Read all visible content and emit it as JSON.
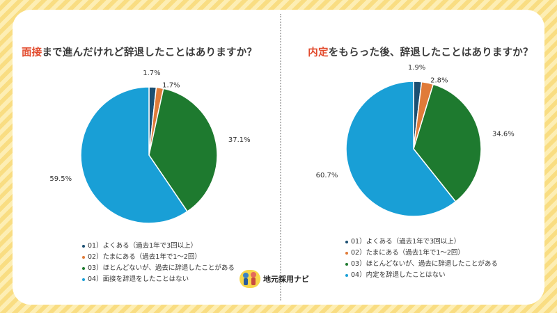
{
  "chart_data": [
    {
      "type": "pie",
      "title_accent": "面接",
      "title_rest": "まで進んだけれど辞退したことはありますか？",
      "categories": [
        "01）よくある（過去1年で3回以上）",
        "02）たまにある（過去1年で1〜2回）",
        "03）ほとんどないが、過去に辞退したことがある",
        "04）面接を辞退をしたことはない"
      ],
      "values": [
        1.7,
        1.7,
        37.1,
        59.5
      ],
      "labels": [
        "1.7%",
        "1.7%",
        "37.1%",
        "59.5%"
      ],
      "colors": [
        "#1b4f72",
        "#e07b39",
        "#1e7a2f",
        "#199fd6"
      ],
      "legend_position": "bottom"
    },
    {
      "type": "pie",
      "title_accent": "内定",
      "title_rest": "をもらった後、辞退したことはありますか？",
      "categories": [
        "01）よくある（過去1年で3回以上）",
        "02）たまにある（過去1年で1〜2回）",
        "03）ほとんどないが、過去に辞退したことがある",
        "04）内定を辞退したことはない"
      ],
      "values": [
        1.9,
        2.8,
        34.6,
        60.7
      ],
      "labels": [
        "1.9%",
        "2.8%",
        "34.6%",
        "60.7%"
      ],
      "colors": [
        "#1b4f72",
        "#e07b39",
        "#1e7a2f",
        "#199fd6"
      ],
      "legend_position": "bottom"
    }
  ],
  "logo": {
    "text": "地元採用ナビ"
  }
}
